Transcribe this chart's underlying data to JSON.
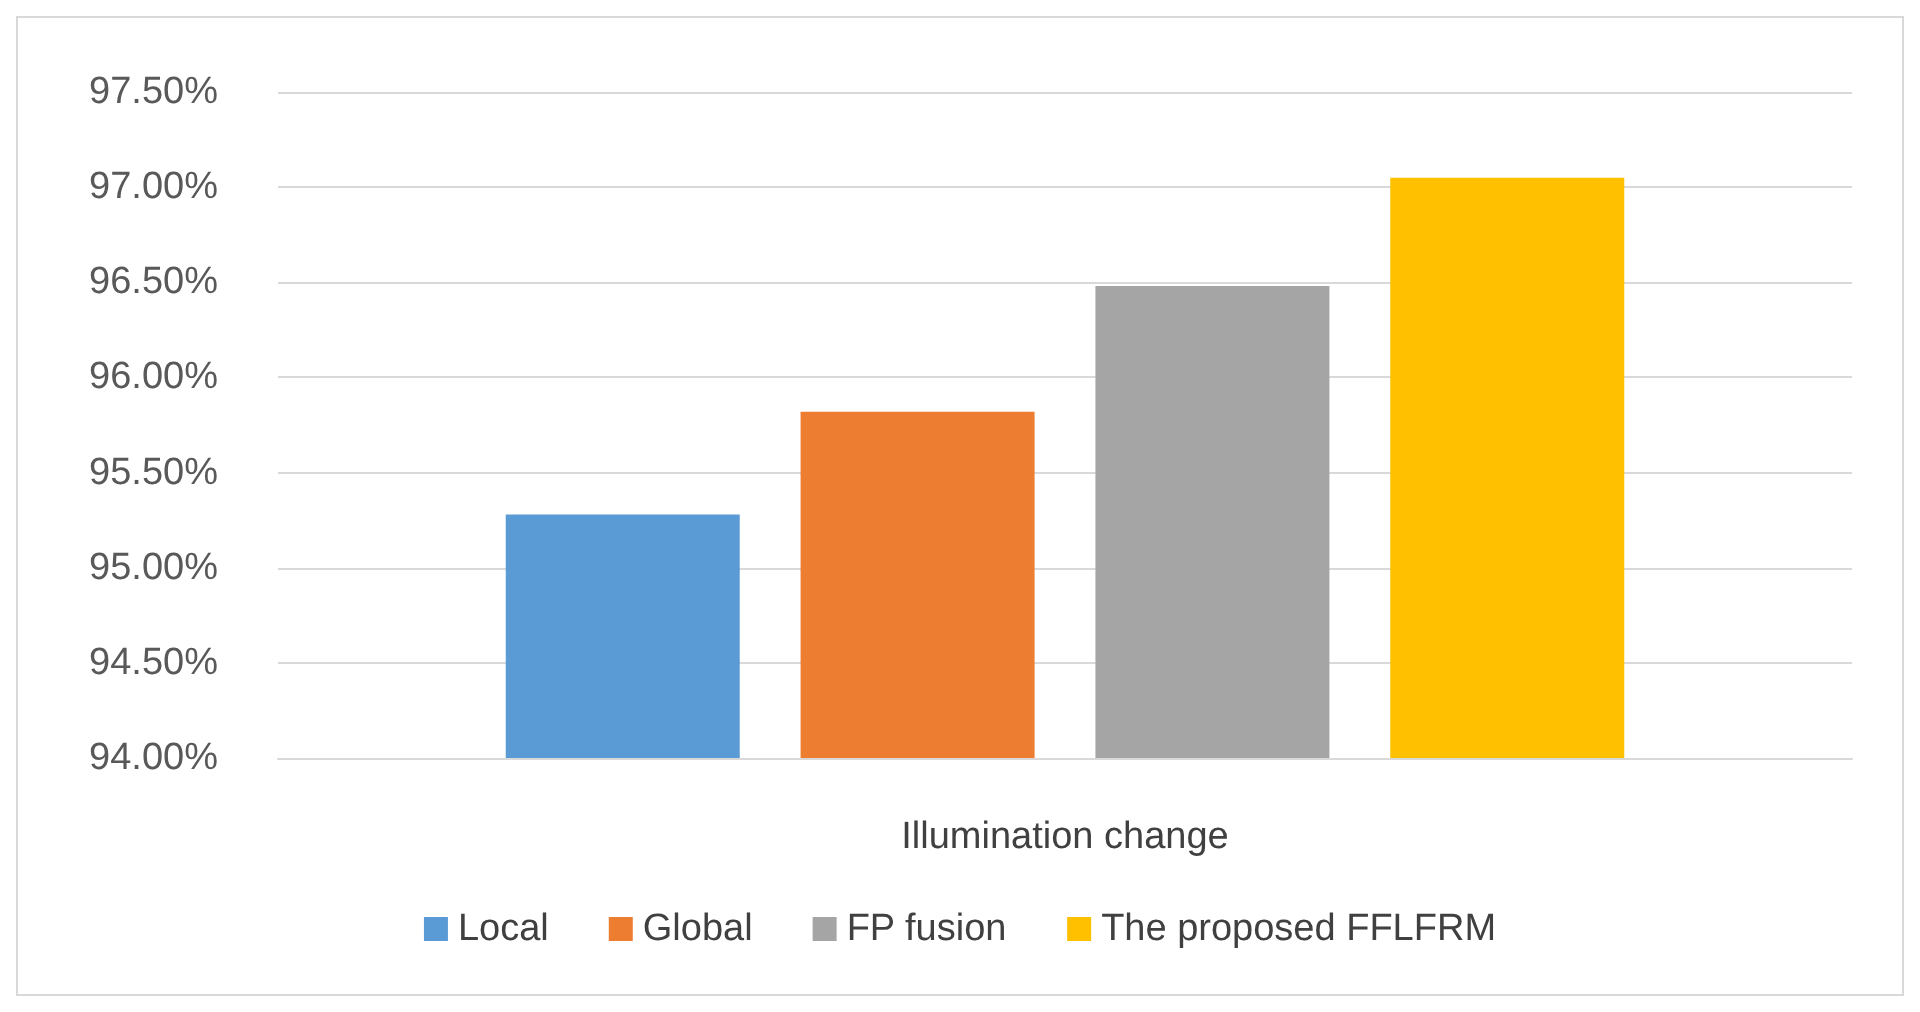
{
  "chart_data": {
    "type": "bar",
    "xlabel": "Illumination change",
    "categories": [
      null
    ],
    "series": [
      {
        "name": "Local",
        "color": "#5b9bd5",
        "values": [
          95.28
        ]
      },
      {
        "name": "Global",
        "color": "#ed7d31",
        "values": [
          95.82
        ]
      },
      {
        "name": "FP fusion",
        "color": "#a5a5a5",
        "values": [
          96.48
        ]
      },
      {
        "name": "The proposed FFLFRM",
        "color": "#ffc000",
        "values": [
          97.05
        ]
      }
    ],
    "ylim": [
      94,
      97.5
    ],
    "yticks": [
      {
        "value": 94,
        "label": "94.00%"
      },
      {
        "value": 94.5,
        "label": "94.50%"
      },
      {
        "value": 95,
        "label": "95.00%"
      },
      {
        "value": 95.5,
        "label": "95.50%"
      },
      {
        "value": 96,
        "label": "96.00%"
      },
      {
        "value": 96.5,
        "label": "96.50%"
      },
      {
        "value": 97,
        "label": "97.00%"
      },
      {
        "value": 97.5,
        "label": "97.50%"
      }
    ],
    "grid": "y",
    "legend": "bottom"
  }
}
